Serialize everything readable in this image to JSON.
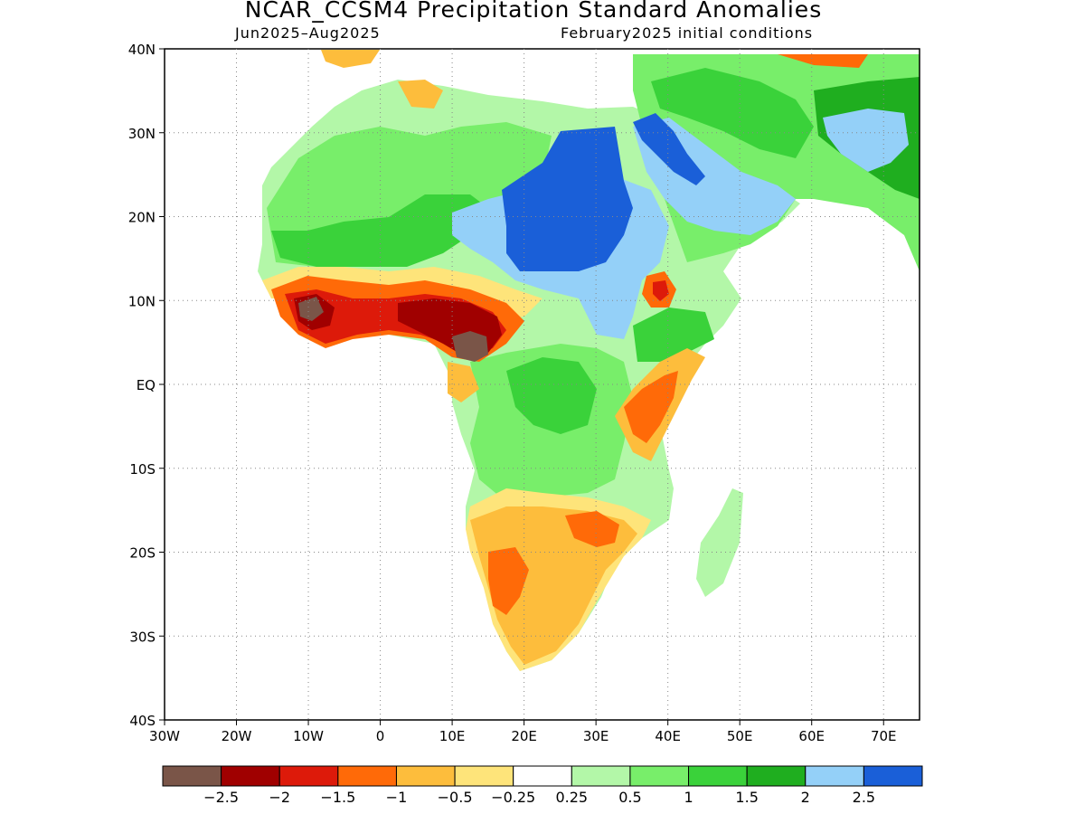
{
  "title": "NCAR_CCSM4 Precipitation Standard Anomalies",
  "subtitle_left": "Jun2025–Aug2025",
  "subtitle_right": "February2025 initial conditions",
  "map": {
    "lon_range": [
      -30,
      75
    ],
    "lat_range": [
      -40,
      40
    ],
    "grid": "dotted",
    "lat_labels": [
      {
        "lat": 40,
        "label": "40N"
      },
      {
        "lat": 30,
        "label": "30N"
      },
      {
        "lat": 20,
        "label": "20N"
      },
      {
        "lat": 10,
        "label": "10N"
      },
      {
        "lat": 0,
        "label": "EQ"
      },
      {
        "lat": -10,
        "label": "10S"
      },
      {
        "lat": -20,
        "label": "20S"
      },
      {
        "lat": -30,
        "label": "30S"
      },
      {
        "lat": -40,
        "label": "40S"
      }
    ],
    "lon_labels": [
      {
        "lon": -30,
        "label": "30W"
      },
      {
        "lon": -20,
        "label": "20W"
      },
      {
        "lon": -10,
        "label": "10W"
      },
      {
        "lon": 0,
        "label": "0"
      },
      {
        "lon": 10,
        "label": "10E"
      },
      {
        "lon": 20,
        "label": "20E"
      },
      {
        "lon": 30,
        "label": "30E"
      },
      {
        "lon": 40,
        "label": "40E"
      },
      {
        "lon": 50,
        "label": "50E"
      },
      {
        "lon": 60,
        "label": "60E"
      },
      {
        "lon": 70,
        "label": "70E"
      }
    ]
  },
  "colorbar": {
    "colors": [
      "#7a5548",
      "#a00000",
      "#dd1a0a",
      "#ff6a08",
      "#fdbd3c",
      "#fee47a",
      "#ffffff",
      "#b3f7a8",
      "#78ee6a",
      "#3ad23a",
      "#1fae1f",
      "#94d0f8",
      "#1a5fd8"
    ],
    "labels": [
      "−2.5",
      "−2",
      "−1.5",
      "−1",
      "−0.5",
      "−0.25",
      "0.25",
      "0.5",
      "1",
      "1.5",
      "2",
      "2.5"
    ]
  }
}
